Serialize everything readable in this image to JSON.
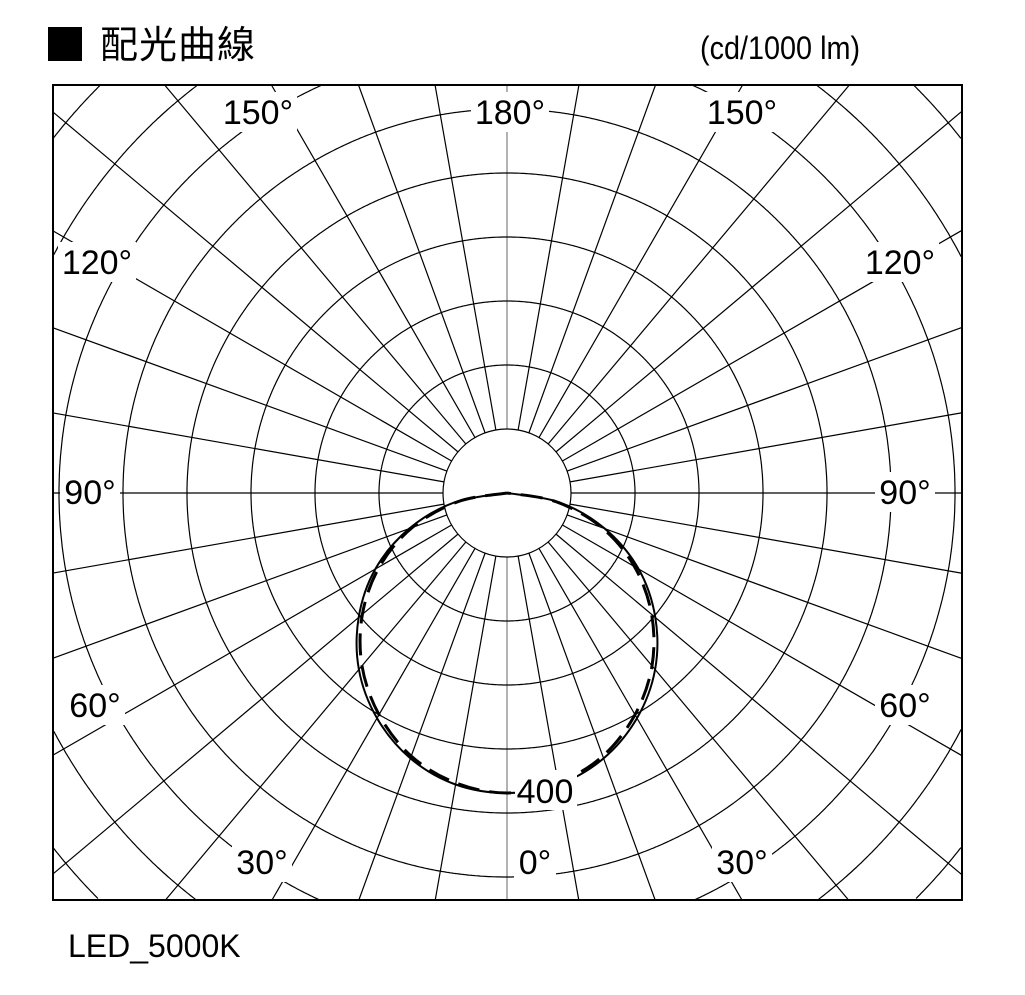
{
  "header": {
    "title": "配光曲線",
    "unit": "(cd/1000 lm)"
  },
  "footer": {
    "lamp_label": "LED_5000K"
  },
  "chart_data": {
    "type": "polar",
    "title": "配光曲線",
    "unit": "cd/1000 lm",
    "radial_scale_label": "400",
    "radial_ring_step": 80,
    "angle_labels": [
      "0°",
      "30°",
      "60°",
      "90°",
      "120°",
      "150°",
      "180°"
    ],
    "angular_grid_step_deg": 10,
    "grid": true,
    "angles_deg": [
      0,
      10,
      20,
      30,
      40,
      50,
      60,
      70,
      80,
      90
    ],
    "series": [
      {
        "style": "solid",
        "values": [
          375,
          370,
          353,
          325,
          288,
          242,
          190,
          130,
          66,
          0
        ]
      },
      {
        "style": "dashed",
        "values": [
          375,
          368,
          350,
          320,
          282,
          236,
          184,
          126,
          62,
          0
        ]
      }
    ],
    "colors": {
      "grid": "#000000",
      "axis0": "#808080",
      "curve": "#000000"
    }
  }
}
